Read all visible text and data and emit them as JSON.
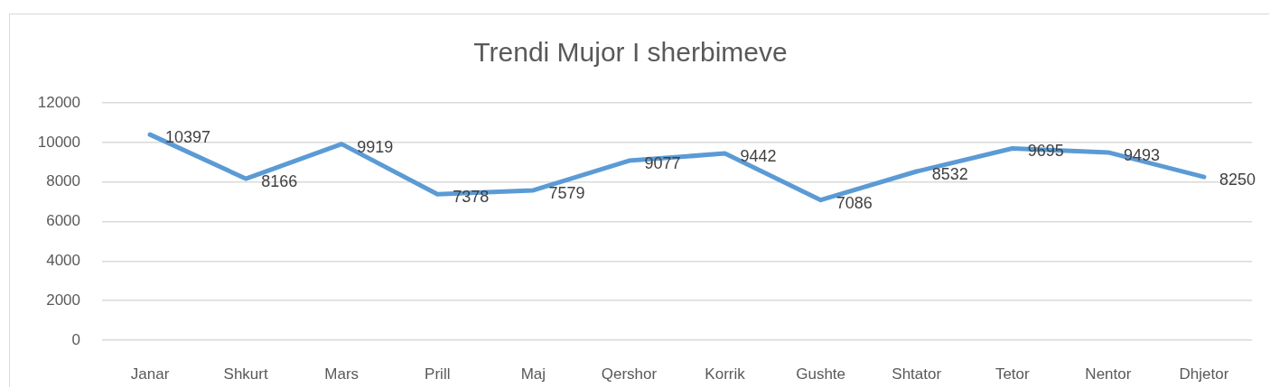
{
  "chart_data": {
    "type": "line",
    "title": "Trendi Mujor I sherbimeve",
    "categories": [
      "Janar",
      "Shkurt",
      "Mars",
      "Prill",
      "Maj",
      "Qershor",
      "Korrik",
      "Gushte",
      "Shtator",
      "Tetor",
      "Nentor",
      "Dhjetor"
    ],
    "values": [
      10397,
      8166,
      9919,
      7378,
      7579,
      9077,
      9442,
      7086,
      8532,
      9695,
      9493,
      8250
    ],
    "color": "#5b9bd5",
    "ylim": [
      0,
      12000
    ],
    "yticks": [
      0,
      2000,
      4000,
      6000,
      8000,
      10000,
      12000
    ],
    "grid": "y",
    "legend": false,
    "marker": "none",
    "line_style": "solid",
    "data_labels": true
  }
}
